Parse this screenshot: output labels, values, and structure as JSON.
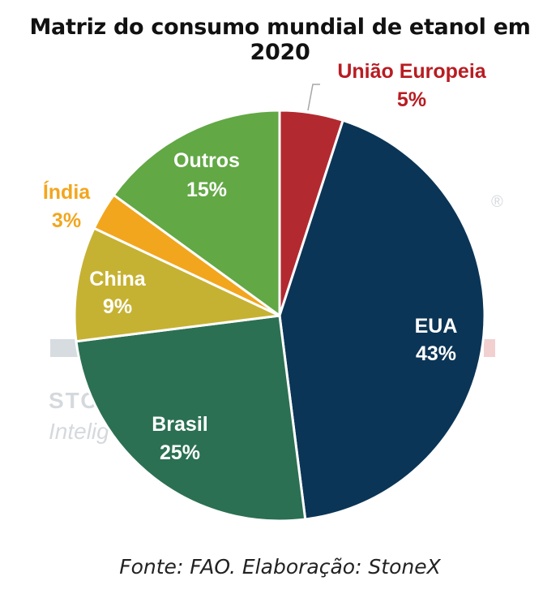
{
  "watermark": {
    "line1": "STO",
    "line2": "Intelig",
    "reg": "®"
  },
  "source": "Fonte: FAO. Elaboração: StoneX",
  "chart_data": {
    "type": "pie",
    "title": "Matriz do consumo mundial de etanol em 2020",
    "unit": "%",
    "slices": [
      {
        "label": "União Europeia",
        "value": 5,
        "value_label": "5%",
        "color": "#b22a30",
        "label_color": "#b81c22"
      },
      {
        "label": "EUA",
        "value": 43,
        "value_label": "43%",
        "color": "#0b3556",
        "label_color": "#ffffff"
      },
      {
        "label": "Brasil",
        "value": 25,
        "value_label": "25%",
        "color": "#2b7053",
        "label_color": "#ffffff"
      },
      {
        "label": "China",
        "value": 9,
        "value_label": "9%",
        "color": "#c6b232",
        "label_color": "#ffffff"
      },
      {
        "label": "Índia",
        "value": 3,
        "value_label": "3%",
        "color": "#f2a61e",
        "label_color": "#f2a61e"
      },
      {
        "label": "Outros",
        "value": 15,
        "value_label": "15%",
        "color": "#62a845",
        "label_color": "#ffffff"
      }
    ]
  }
}
